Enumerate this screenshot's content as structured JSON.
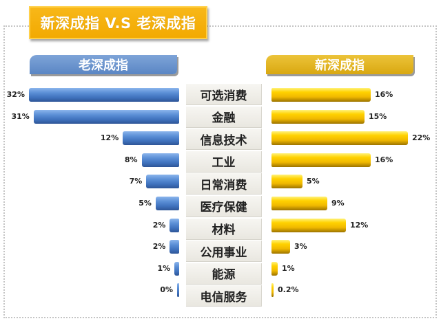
{
  "title": "新深成指 V.S 老深成指",
  "headers": {
    "old": "老深成指",
    "new": "新深成指"
  },
  "colors": {
    "title_bg": "#f2a900",
    "old_bar": "#4a7ec8",
    "new_bar": "#f3c000",
    "old_header": "#6b95cf",
    "new_header": "#e2b424"
  },
  "rows": [
    {
      "category": "可选消费",
      "old_label": "32%",
      "new_label": "16%"
    },
    {
      "category": "金融",
      "old_label": "31%",
      "new_label": "15%"
    },
    {
      "category": "信息技术",
      "old_label": "12%",
      "new_label": "22%"
    },
    {
      "category": "工业",
      "old_label": "8%",
      "new_label": "16%"
    },
    {
      "category": "日常消费",
      "old_label": "7%",
      "new_label": "5%"
    },
    {
      "category": "医疗保健",
      "old_label": "5%",
      "new_label": "9%"
    },
    {
      "category": "材料",
      "old_label": "2%",
      "new_label": "12%"
    },
    {
      "category": "公用事业",
      "old_label": "2%",
      "new_label": "3%"
    },
    {
      "category": "能源",
      "old_label": "1%",
      "new_label": "1%"
    },
    {
      "category": "电信服务",
      "old_label": "0%",
      "new_label": "0.2%"
    }
  ],
  "chart_data": {
    "type": "bar",
    "orientation": "horizontal-butterfly",
    "title": "新深成指 V.S 老深成指",
    "categories": [
      "可选消费",
      "金融",
      "信息技术",
      "工业",
      "日常消费",
      "医疗保健",
      "材料",
      "公用事业",
      "能源",
      "电信服务"
    ],
    "series": [
      {
        "name": "老深成指",
        "side": "left",
        "values": [
          32,
          31,
          12,
          8,
          7,
          5,
          2,
          2,
          1,
          0
        ]
      },
      {
        "name": "新深成指",
        "side": "right",
        "values": [
          16,
          15,
          22,
          16,
          5,
          9,
          12,
          3,
          1,
          0.2
        ]
      }
    ],
    "unit": "%",
    "xlabel": "",
    "ylabel": "",
    "grid": false,
    "legend": "column headers above each side"
  }
}
